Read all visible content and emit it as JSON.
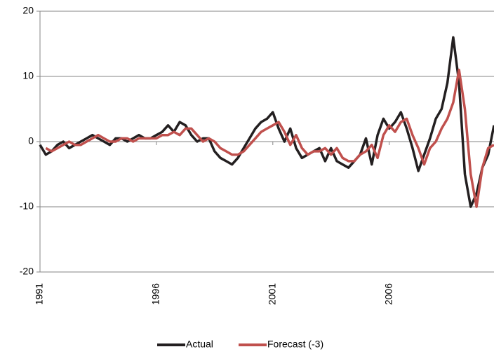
{
  "chart_data": {
    "type": "line",
    "x": [
      1991,
      1991.25,
      1991.5,
      1991.75,
      1992,
      1992.25,
      1992.5,
      1992.75,
      1993,
      1993.25,
      1993.5,
      1993.75,
      1994,
      1994.25,
      1994.5,
      1994.75,
      1995,
      1995.25,
      1995.5,
      1995.75,
      1996,
      1996.25,
      1996.5,
      1996.75,
      1997,
      1997.25,
      1997.5,
      1997.75,
      1998,
      1998.25,
      1998.5,
      1998.75,
      1999,
      1999.25,
      1999.5,
      1999.75,
      2000,
      2000.25,
      2000.5,
      2000.75,
      2001,
      2001.25,
      2001.5,
      2001.75,
      2002,
      2002.25,
      2002.5,
      2002.75,
      2003,
      2003.25,
      2003.5,
      2003.75,
      2004,
      2004.25,
      2004.5,
      2004.75,
      2005,
      2005.25,
      2005.5,
      2005.75,
      2006,
      2006.25,
      2006.5,
      2006.75,
      2007,
      2007.25,
      2007.5,
      2007.75,
      2008,
      2008.25,
      2008.5,
      2008.75,
      2009,
      2009.25,
      2009.5,
      2009.75,
      2010,
      2010.25,
      2010.5
    ],
    "series": [
      {
        "name": "Actual",
        "color": "#231f20",
        "values": [
          -0.5,
          -2,
          -1.5,
          -0.5,
          0,
          -1,
          -0.5,
          0,
          0.5,
          1,
          0.5,
          0,
          -0.5,
          0.5,
          0.5,
          0,
          0.5,
          1,
          0.5,
          0.5,
          1,
          1.5,
          2.5,
          1.5,
          3,
          2.5,
          1,
          0,
          0.5,
          0.5,
          -1.5,
          -2.5,
          -3,
          -3.5,
          -2.5,
          -1,
          0.5,
          2,
          3,
          3.5,
          4.5,
          2,
          0,
          2,
          -1,
          -2.5,
          -2,
          -1.5,
          -1,
          -3,
          -1,
          -3,
          -3.5,
          -4,
          -3,
          -2,
          0.5,
          -3.5,
          1,
          3.5,
          2,
          3,
          4.5,
          2,
          -1,
          -4.5,
          -2,
          0.5,
          3.5,
          5,
          9,
          16,
          9,
          -5,
          -10,
          -8,
          -4,
          -2,
          2.5
        ]
      },
      {
        "name": "Forecast (-3)",
        "color": "#c0504d",
        "values": [
          null,
          -1,
          -1.5,
          -1,
          -0.5,
          0,
          -0.5,
          -0.5,
          0,
          0.5,
          1,
          0.5,
          0,
          0,
          0.5,
          0.5,
          0,
          0.5,
          0.5,
          0.5,
          0.5,
          1,
          1,
          1.5,
          1,
          2,
          2,
          1,
          0,
          0.5,
          0,
          -1,
          -1.5,
          -2,
          -2,
          -1.5,
          -0.5,
          0.5,
          1.5,
          2,
          2.5,
          3,
          1.5,
          -0.5,
          1,
          -1,
          -2,
          -1.5,
          -1.5,
          -1,
          -2,
          -1,
          -2.5,
          -3,
          -3,
          -2,
          -1.5,
          -0.5,
          -2.5,
          1,
          2.5,
          1.5,
          3,
          3.5,
          1,
          -1,
          -3.5,
          -1,
          0,
          2,
          3.5,
          6,
          11,
          5,
          -5,
          -10,
          -4,
          -1,
          -0.5
        ]
      }
    ],
    "xlim": [
      1991,
      2010.5
    ],
    "xticks": [
      1991,
      1996,
      2001,
      2006
    ],
    "ylim": [
      -20,
      20
    ],
    "yticks": [
      -20,
      -10,
      0,
      10,
      20
    ],
    "grid": true,
    "legend": "bottom"
  }
}
